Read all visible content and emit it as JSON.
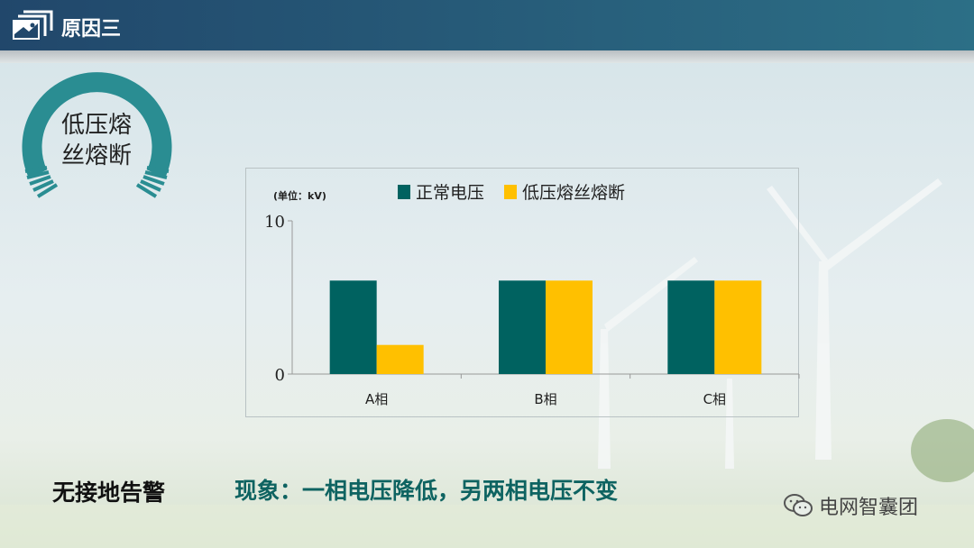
{
  "header": {
    "title": "原因三",
    "icon": "picture-frame-icon"
  },
  "badge": {
    "text_line1": "低压熔",
    "text_line2": "丝熔断"
  },
  "footer": {
    "left": "无接地告警",
    "main": "现象：一相电压降低，另两相电压不变",
    "brand": "电网智囊团",
    "brand_icon": "wechat-icon"
  },
  "colors": {
    "header": "#21476b",
    "teal": "#006260",
    "yellow": "#ffc000",
    "accent": "#2a8d92"
  },
  "chart_data": {
    "type": "bar",
    "unit_label": "(单位：kV)",
    "categories": [
      "A相",
      "B相",
      "C相"
    ],
    "series": [
      {
        "name": "正常电压",
        "color": "#006260",
        "values": [
          6.1,
          6.1,
          6.1
        ]
      },
      {
        "name": "低压熔丝熔断",
        "color": "#ffc000",
        "values": [
          1.9,
          6.1,
          6.1
        ]
      }
    ],
    "ylim": [
      0,
      10
    ],
    "yticks": [
      "0",
      "10"
    ],
    "legend": "top",
    "grid": false
  }
}
